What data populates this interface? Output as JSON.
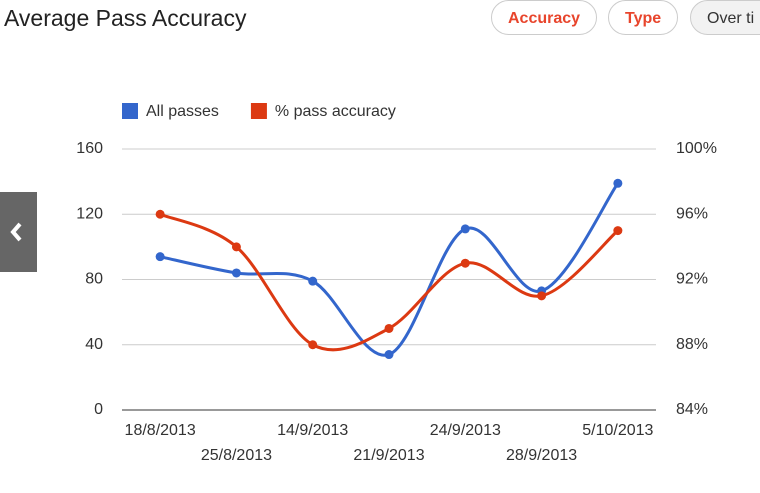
{
  "header": {
    "title": "Average Pass Accuracy",
    "buttons": [
      "Accuracy",
      "Type",
      "Over ti"
    ]
  },
  "chart_data": {
    "type": "line",
    "categories": [
      "18/8/2013",
      "25/8/2013",
      "14/9/2013",
      "21/9/2013",
      "24/9/2013",
      "28/9/2013",
      "5/10/2013"
    ],
    "series": [
      {
        "name": "All passes",
        "color": "#3366cc",
        "values": [
          94,
          84,
          79,
          34,
          111,
          73,
          139
        ]
      },
      {
        "name": "% pass accuracy",
        "color": "#dc3912",
        "axis": "y2",
        "values": [
          96,
          94,
          88,
          89,
          93,
          91,
          95
        ]
      }
    ],
    "ylim": [
      0,
      160
    ],
    "yticks": [
      0,
      40,
      80,
      120,
      160
    ],
    "y2lim": [
      84,
      100
    ],
    "y2ticks": [
      {
        "value": 84,
        "label": "84%"
      },
      {
        "value": 88,
        "label": "88%"
      },
      {
        "value": 92,
        "label": "92%"
      },
      {
        "value": 96,
        "label": "96%"
      },
      {
        "value": 100,
        "label": "100%"
      }
    ],
    "grid": true,
    "legend": "top",
    "smooth": true
  }
}
